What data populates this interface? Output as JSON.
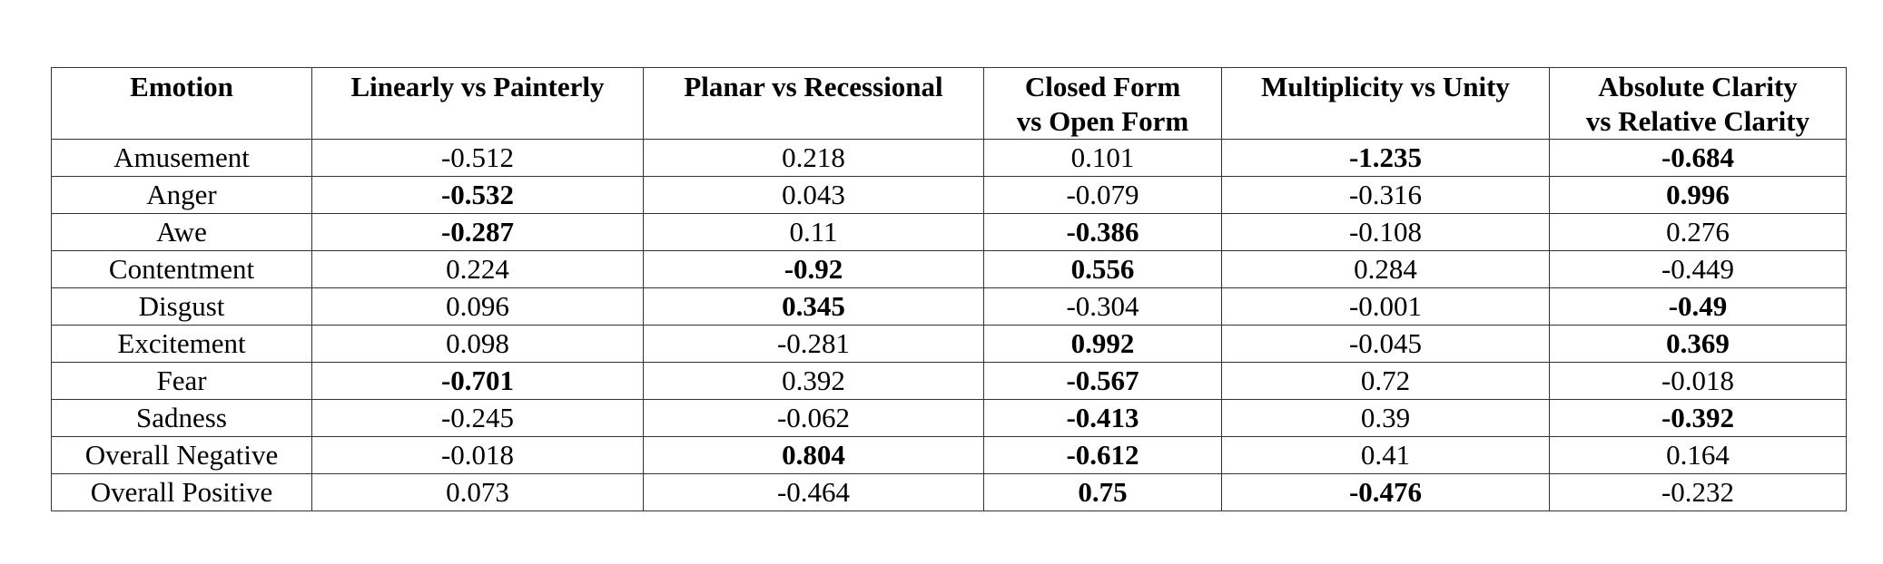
{
  "table": {
    "headers": [
      "Emotion",
      "Linearly vs Painterly",
      "Planar vs Recessional",
      "Closed Form vs Open Form",
      "Multiplicity vs Unity",
      "Absolute Clarity vs Relative Clarity"
    ],
    "header_lines": [
      [
        "Emotion"
      ],
      [
        "Linearly vs Painterly"
      ],
      [
        "Planar vs Recessional"
      ],
      [
        "Closed Form",
        "vs Open Form"
      ],
      [
        "Multiplicity vs Unity"
      ],
      [
        "Absolute Clarity",
        "vs Relative Clarity"
      ]
    ],
    "rows": [
      {
        "cells": [
          "Amusement",
          "-0.512",
          "0.218",
          "0.101",
          "-1.235",
          "-0.684"
        ],
        "bold": [
          false,
          false,
          false,
          false,
          true,
          true
        ]
      },
      {
        "cells": [
          "Anger",
          "-0.532",
          "0.043",
          "-0.079",
          "-0.316",
          "0.996"
        ],
        "bold": [
          false,
          true,
          false,
          false,
          false,
          true
        ]
      },
      {
        "cells": [
          "Awe",
          "-0.287",
          "0.11",
          "-0.386",
          "-0.108",
          "0.276"
        ],
        "bold": [
          false,
          true,
          false,
          true,
          false,
          false
        ]
      },
      {
        "cells": [
          "Contentment",
          "0.224",
          "-0.92",
          "0.556",
          "0.284",
          "-0.449"
        ],
        "bold": [
          false,
          false,
          true,
          true,
          false,
          false
        ]
      },
      {
        "cells": [
          "Disgust",
          "0.096",
          "0.345",
          "-0.304",
          "-0.001",
          "-0.49"
        ],
        "bold": [
          false,
          false,
          true,
          false,
          false,
          true
        ]
      },
      {
        "cells": [
          "Excitement",
          "0.098",
          "-0.281",
          "0.992",
          "-0.045",
          "0.369"
        ],
        "bold": [
          false,
          false,
          false,
          true,
          false,
          true
        ]
      },
      {
        "cells": [
          "Fear",
          "-0.701",
          "0.392",
          "-0.567",
          "0.72",
          "-0.018"
        ],
        "bold": [
          false,
          true,
          false,
          true,
          false,
          false
        ]
      },
      {
        "cells": [
          "Sadness",
          "-0.245",
          "-0.062",
          "-0.413",
          "0.39",
          "-0.392"
        ],
        "bold": [
          false,
          false,
          false,
          true,
          false,
          true
        ]
      },
      {
        "cells": [
          "Overall Negative",
          "-0.018",
          "0.804",
          "-0.612",
          "0.41",
          "0.164"
        ],
        "bold": [
          false,
          false,
          true,
          true,
          false,
          false
        ]
      },
      {
        "cells": [
          "Overall Positive",
          "0.073",
          "-0.464",
          "0.75",
          "-0.476",
          "-0.232"
        ],
        "bold": [
          false,
          false,
          false,
          true,
          true,
          false
        ]
      }
    ]
  }
}
